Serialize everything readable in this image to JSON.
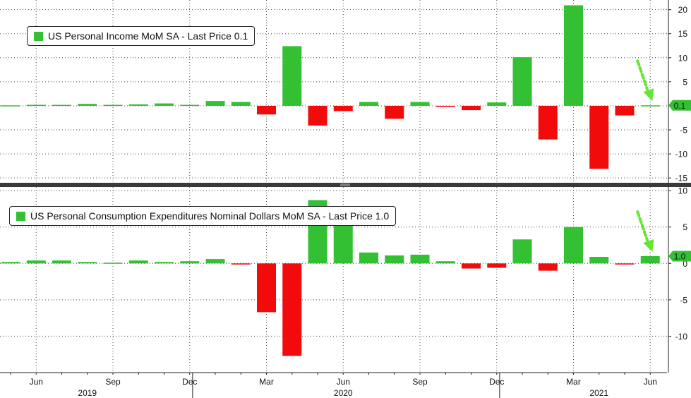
{
  "colors": {
    "positive": "#33c033",
    "negative": "#f20b0b",
    "arrow": "#66e633",
    "grid": "#4a4a4a",
    "axis_text": "#111111",
    "price_tag_bg": "#33c033"
  },
  "chart_data": [
    {
      "type": "bar",
      "title": "",
      "legend": "US Personal Income MoM SA - Last Price 0.1",
      "last_price_label": "0.1",
      "ylim": [
        -16,
        22
      ],
      "yticks": [
        -15,
        -10,
        -5,
        0,
        5,
        10,
        15,
        20
      ],
      "ytick_labels": [
        "-15",
        "-10",
        "-5",
        "0",
        "5",
        "10",
        "15",
        "20"
      ],
      "categories": [
        "2019-05",
        "2019-06",
        "2019-07",
        "2019-08",
        "2019-09",
        "2019-10",
        "2019-11",
        "2019-12",
        "2020-01",
        "2020-02",
        "2020-03",
        "2020-04",
        "2020-05",
        "2020-06",
        "2020-07",
        "2020-08",
        "2020-09",
        "2020-10",
        "2020-11",
        "2020-12",
        "2021-01",
        "2021-02",
        "2021-03",
        "2021-04",
        "2021-05",
        "2021-06"
      ],
      "values": [
        0.1,
        0.2,
        0.2,
        0.4,
        0.2,
        0.3,
        0.5,
        0.2,
        1.0,
        0.8,
        -1.8,
        12.4,
        -4.1,
        -1.1,
        0.8,
        -2.7,
        0.8,
        -0.1,
        -0.9,
        0.7,
        10.1,
        -7.0,
        20.9,
        -13.1,
        -2.0,
        0.1
      ]
    },
    {
      "type": "bar",
      "title": "",
      "legend": "US Personal Consumption Expenditures Nominal Dollars MoM SA - Last Price 1.0",
      "last_price_label": "1.0",
      "ylim": [
        -15,
        10.5
      ],
      "yticks": [
        -10,
        -5,
        0,
        5,
        10
      ],
      "ytick_labels": [
        "-10",
        "-5",
        "0",
        "5",
        "10"
      ],
      "categories": [
        "2019-05",
        "2019-06",
        "2019-07",
        "2019-08",
        "2019-09",
        "2019-10",
        "2019-11",
        "2019-12",
        "2020-01",
        "2020-02",
        "2020-03",
        "2020-04",
        "2020-05",
        "2020-06",
        "2020-07",
        "2020-08",
        "2020-09",
        "2020-10",
        "2020-11",
        "2020-12",
        "2021-01",
        "2021-02",
        "2021-03",
        "2021-04",
        "2021-05",
        "2021-06"
      ],
      "values": [
        0.2,
        0.4,
        0.4,
        0.2,
        0.1,
        0.4,
        0.2,
        0.3,
        0.6,
        -0.1,
        -6.7,
        -12.7,
        8.7,
        6.0,
        1.5,
        1.1,
        1.2,
        0.3,
        -0.7,
        -0.6,
        3.3,
        -1.0,
        5.0,
        0.9,
        -0.1,
        1.0
      ]
    }
  ],
  "x_axis": {
    "month_labels": [
      {
        "category": "2019-06",
        "label": "Jun"
      },
      {
        "category": "2019-09",
        "label": "Sep"
      },
      {
        "category": "2019-12",
        "label": "Dec"
      },
      {
        "category": "2020-03",
        "label": "Mar"
      },
      {
        "category": "2020-06",
        "label": "Jun"
      },
      {
        "category": "2020-09",
        "label": "Sep"
      },
      {
        "category": "2020-12",
        "label": "Dec"
      },
      {
        "category": "2021-03",
        "label": "Mar"
      },
      {
        "category": "2021-06",
        "label": "Jun"
      }
    ],
    "year_labels": [
      {
        "category": "2019-08",
        "label": "2019"
      },
      {
        "category": "2020-06",
        "label": "2020"
      },
      {
        "category": "2021-04",
        "label": "2021"
      }
    ],
    "year_boundaries": [
      "2019-12",
      "2020-12"
    ]
  }
}
